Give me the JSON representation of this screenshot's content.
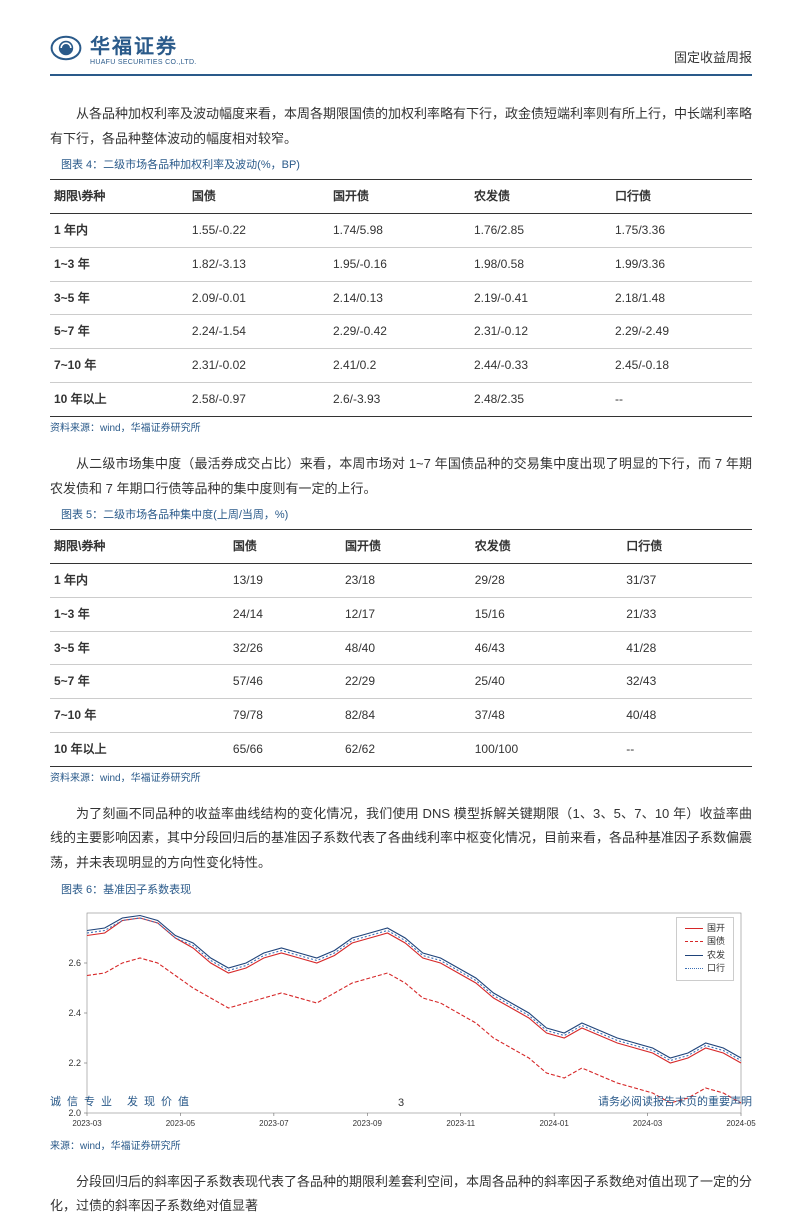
{
  "header": {
    "logo_cn": "华福证券",
    "logo_en": "HUAFU SECURITIES CO.,LTD.",
    "title": "固定收益周报"
  },
  "para1": "从各品种加权利率及波动幅度来看，本周各期限国债的加权利率略有下行，政金债短端利率则有所上行，中长端利率略有下行，各品种整体波动的幅度相对较窄。",
  "table4": {
    "title": "图表 4：二级市场各品种加权利率及波动(%，BP)",
    "headers": [
      "期限\\券种",
      "国债",
      "国开债",
      "农发债",
      "口行债"
    ],
    "rows": [
      [
        "1 年内",
        "1.55/-0.22",
        "1.74/5.98",
        "1.76/2.85",
        "1.75/3.36"
      ],
      [
        "1~3 年",
        "1.82/-3.13",
        "1.95/-0.16",
        "1.98/0.58",
        "1.99/3.36"
      ],
      [
        "3~5 年",
        "2.09/-0.01",
        "2.14/0.13",
        "2.19/-0.41",
        "2.18/1.48"
      ],
      [
        "5~7 年",
        "2.24/-1.54",
        "2.29/-0.42",
        "2.31/-0.12",
        "2.29/-2.49"
      ],
      [
        "7~10 年",
        "2.31/-0.02",
        "2.41/0.2",
        "2.44/-0.33",
        "2.45/-0.18"
      ],
      [
        "10 年以上",
        "2.58/-0.97",
        "2.6/-3.93",
        "2.48/2.35",
        "--"
      ]
    ],
    "source": "资料来源：wind，华福证券研究所"
  },
  "para2": "从二级市场集中度（最活券成交占比）来看，本周市场对 1~7 年国债品种的交易集中度出现了明显的下行，而 7 年期农发债和 7 年期口行债等品种的集中度则有一定的上行。",
  "table5": {
    "title": "图表 5：二级市场各品种集中度(上周/当周，%)",
    "headers": [
      "期限\\券种",
      "国债",
      "国开债",
      "农发债",
      "口行债"
    ],
    "rows": [
      [
        "1 年内",
        "13/19",
        "23/18",
        "29/28",
        "31/37"
      ],
      [
        "1~3 年",
        "24/14",
        "12/17",
        "15/16",
        "21/33"
      ],
      [
        "3~5 年",
        "32/26",
        "48/40",
        "46/43",
        "41/28"
      ],
      [
        "5~7 年",
        "57/46",
        "22/29",
        "25/40",
        "32/43"
      ],
      [
        "7~10 年",
        "79/78",
        "82/84",
        "37/48",
        "40/48"
      ],
      [
        "10 年以上",
        "65/66",
        "62/62",
        "100/100",
        "--"
      ]
    ],
    "source": "资料来源：wind，华福证券研究所"
  },
  "para3": "为了刻画不同品种的收益率曲线结构的变化情况，我们使用 DNS 模型拆解关键期限（1、3、5、7、10 年）收益率曲线的主要影响因素，其中分段回归后的基准因子系数代表了各曲线利率中枢变化情况，目前来看，各品种基准因子系数偏震荡，并未表现明显的方向性变化特性。",
  "chart6": {
    "title": "图表 6：基准因子系数表现",
    "x_labels": [
      "2023-03",
      "2023-05",
      "2023-07",
      "2023-09",
      "2023-11",
      "2024-01",
      "2024-03",
      "2024-05"
    ],
    "y_labels": [
      "2.0",
      "2.2",
      "2.4",
      "2.6"
    ],
    "ylim": [
      2.0,
      2.8
    ],
    "legend": [
      {
        "label": "国开",
        "color": "#d62728",
        "dash": "none"
      },
      {
        "label": "国债",
        "color": "#d62728",
        "dash": "4,2"
      },
      {
        "label": "农发",
        "color": "#1f437a",
        "dash": "none"
      },
      {
        "label": "口行",
        "color": "#3b6fb5",
        "dash": "2,2"
      }
    ],
    "series": {
      "guokai": {
        "color": "#d62728",
        "dash": "none",
        "pts": [
          2.71,
          2.72,
          2.77,
          2.78,
          2.76,
          2.7,
          2.66,
          2.6,
          2.56,
          2.58,
          2.62,
          2.64,
          2.62,
          2.6,
          2.63,
          2.68,
          2.7,
          2.72,
          2.68,
          2.62,
          2.6,
          2.56,
          2.52,
          2.46,
          2.42,
          2.38,
          2.32,
          2.3,
          2.34,
          2.31,
          2.28,
          2.26,
          2.24,
          2.2,
          2.22,
          2.26,
          2.24,
          2.2
        ]
      },
      "guozhai": {
        "color": "#d62728",
        "dash": "4,2",
        "pts": [
          2.55,
          2.56,
          2.6,
          2.62,
          2.6,
          2.55,
          2.5,
          2.46,
          2.42,
          2.44,
          2.46,
          2.48,
          2.46,
          2.44,
          2.48,
          2.52,
          2.54,
          2.56,
          2.52,
          2.46,
          2.44,
          2.4,
          2.36,
          2.3,
          2.26,
          2.22,
          2.16,
          2.14,
          2.18,
          2.15,
          2.12,
          2.1,
          2.08,
          2.04,
          2.06,
          2.1,
          2.08,
          2.04
        ]
      },
      "nongfa": {
        "color": "#1f437a",
        "dash": "none",
        "pts": [
          2.73,
          2.74,
          2.78,
          2.79,
          2.77,
          2.71,
          2.68,
          2.62,
          2.58,
          2.6,
          2.64,
          2.66,
          2.64,
          2.62,
          2.65,
          2.7,
          2.72,
          2.74,
          2.7,
          2.64,
          2.62,
          2.58,
          2.54,
          2.48,
          2.44,
          2.4,
          2.34,
          2.32,
          2.36,
          2.33,
          2.3,
          2.28,
          2.26,
          2.22,
          2.24,
          2.28,
          2.26,
          2.22
        ]
      },
      "kouhang": {
        "color": "#3b6fb5",
        "dash": "2,2",
        "pts": [
          2.72,
          2.73,
          2.77,
          2.78,
          2.76,
          2.7,
          2.67,
          2.61,
          2.57,
          2.59,
          2.63,
          2.65,
          2.63,
          2.61,
          2.64,
          2.69,
          2.71,
          2.73,
          2.69,
          2.63,
          2.61,
          2.57,
          2.53,
          2.47,
          2.43,
          2.39,
          2.33,
          2.31,
          2.35,
          2.32,
          2.29,
          2.27,
          2.25,
          2.21,
          2.23,
          2.27,
          2.25,
          2.21
        ]
      }
    },
    "source": "来源：wind，华福证券研究所"
  },
  "para4": "分段回归后的斜率因子系数表现代表了各品种的期限利差套利空间，本周各品种的斜率因子系数绝对值出现了一定的分化，过债的斜率因子系数绝对值显著",
  "footer": {
    "left": "诚信专业  发现价值",
    "right": "请务必阅读报告末页的重要声明",
    "page": "3"
  }
}
